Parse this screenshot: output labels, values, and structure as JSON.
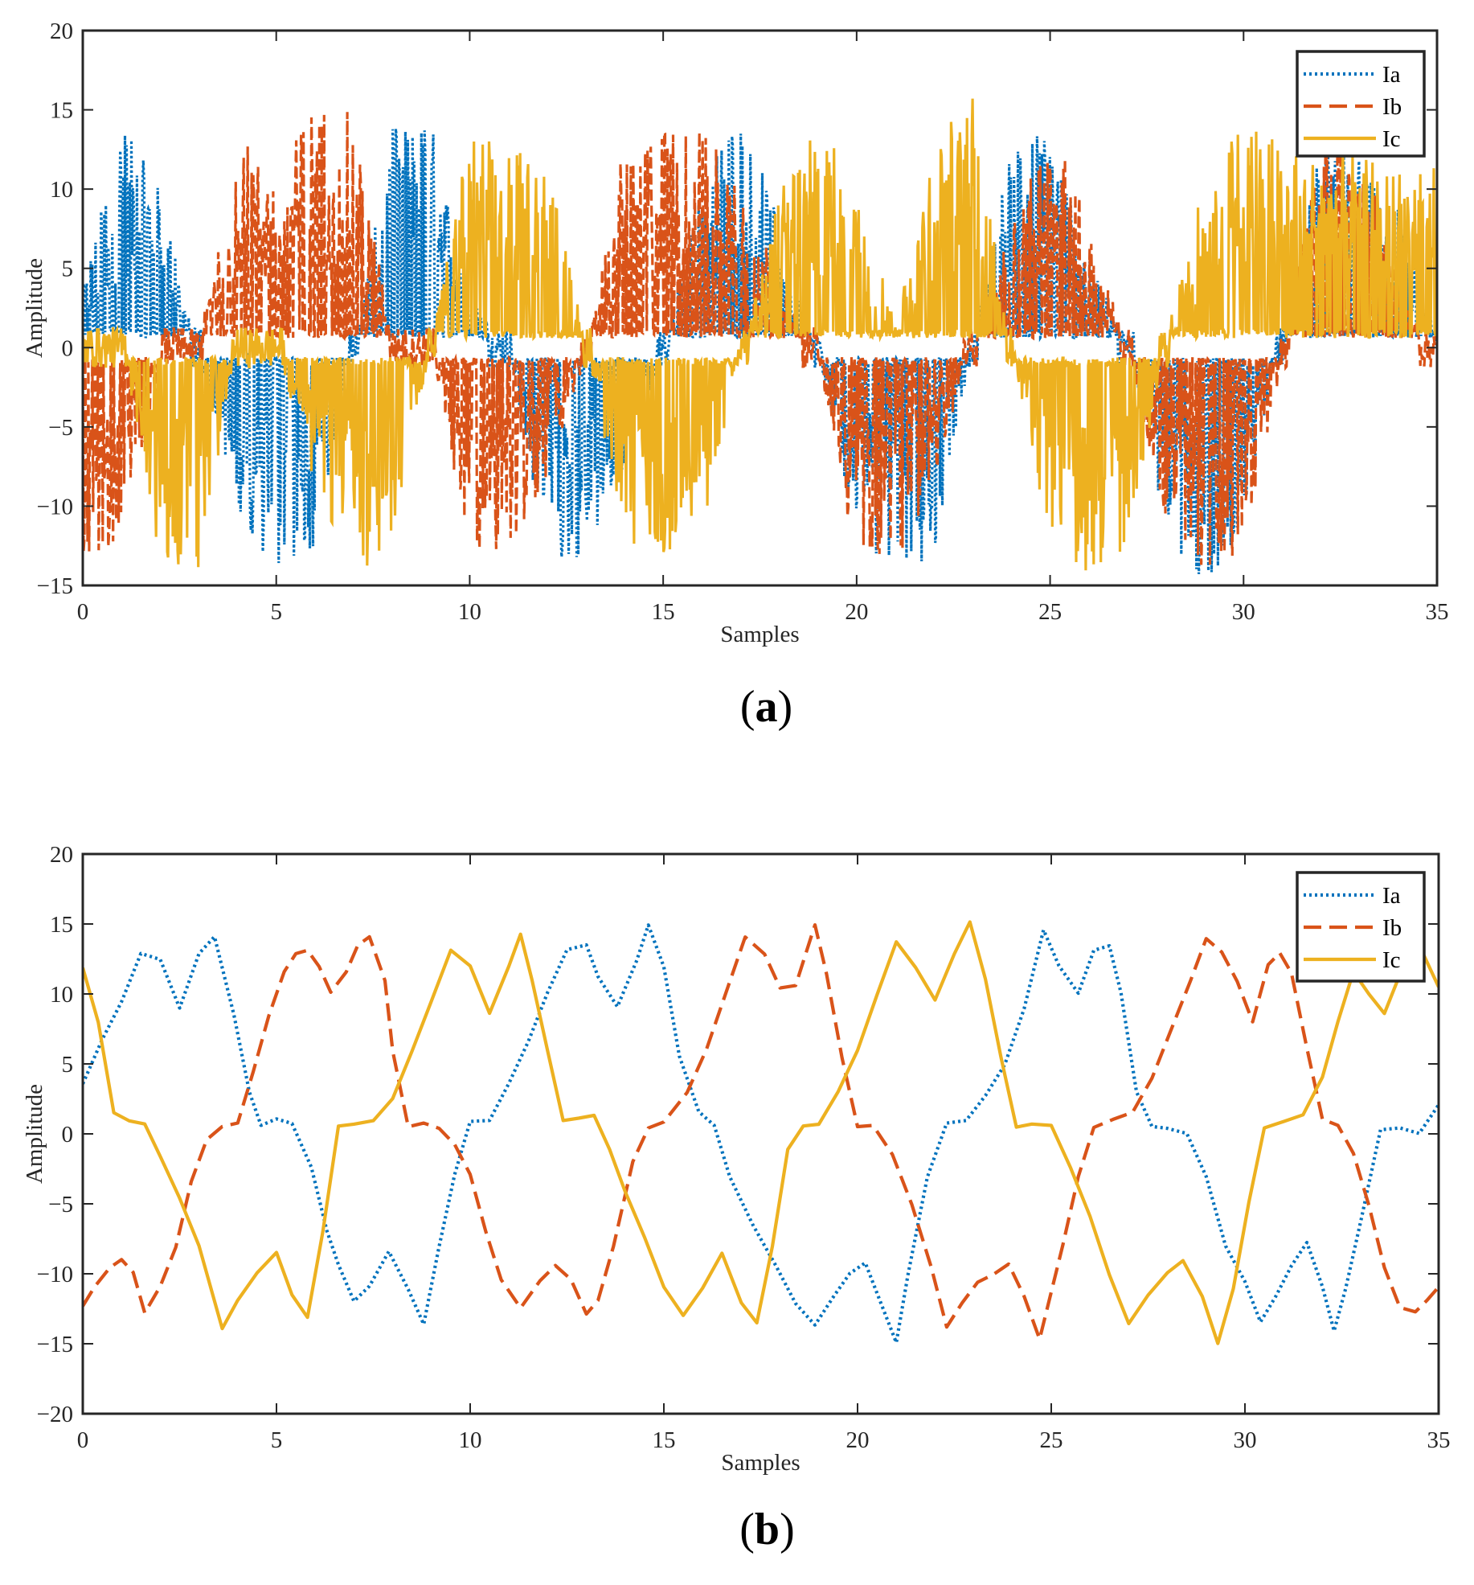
{
  "colors": {
    "Ia": "#0072BD",
    "Ib": "#D95319",
    "Ic": "#EDB120"
  },
  "chart_data": [
    {
      "type": "line",
      "caption_open": "(",
      "caption_letter": "a",
      "caption_close": ")",
      "xlabel": "Samples",
      "ylabel": "Amplitude",
      "xlim": [
        0,
        35
      ],
      "ylim": [
        -15,
        20
      ],
      "xticks": [
        0,
        5,
        10,
        15,
        20,
        25,
        30,
        35
      ],
      "yticks": [
        -15,
        -10,
        -5,
        0,
        5,
        10,
        15,
        20
      ],
      "xtick_labels": [
        "0",
        "5",
        "10",
        "15",
        "20",
        "25",
        "30",
        "35"
      ],
      "ytick_labels": [
        "−15",
        "−10",
        "−5",
        "0",
        "5",
        "10",
        "15",
        "20"
      ],
      "legend_position": "top-right",
      "style": "pwm-switched",
      "series": [
        {
          "name": "Ia",
          "values": [
            3.5,
            12.9,
            9.1,
            -0.8,
            -9.3,
            -13.2,
            -11.6,
            -0.1,
            12.6,
            13.1,
            3.0,
            -0.1,
            -12.3,
            -12.4,
            -7.1,
            -0.2,
            9.5,
            13.9,
            7.2,
            -0.3,
            -10.8,
            -13.5,
            -11.8,
            0.0,
            12.1,
            12.4,
            5.1,
            0.2,
            -10.5,
            -14.0,
            -10.0,
            0.4,
            11.6,
            11.1,
            8.2,
            0.8
          ]
        },
        {
          "name": "Ib",
          "values": [
            -12.1,
            -11.7,
            -1.6,
            0.3,
            12.4,
            9.8,
            14.3,
            13.4,
            0.6,
            -0.0,
            -11.8,
            -11.9,
            -7.3,
            -0.7,
            11.9,
            12.6,
            12.8,
            10.6,
            4.0,
            -0.5,
            -12.9,
            -12.3,
            -7.9,
            0.5,
            7.4,
            14.0,
            7.3,
            -0.2,
            -10.2,
            -13.3,
            -11.4,
            -1.0,
            12.6,
            12.5,
            3.8,
            -0.5
          ]
        },
        {
          "name": "Ic",
          "values": [
            -0.2,
            0.3,
            -12.5,
            -12.7,
            0.2,
            0.0,
            -7.9,
            -13.3,
            -11.4,
            0.2,
            12.4,
            11.5,
            10.6,
            0.5,
            -11.5,
            -12.3,
            -10.8,
            -0.7,
            9.5,
            12.6,
            10.1,
            1.4,
            12.5,
            14.4,
            -0.3,
            -11.4,
            -13.2,
            -11.5,
            0.6,
            9.7,
            13.4,
            11.8,
            11.1,
            11.4,
            10.0,
            10.4
          ]
        }
      ]
    },
    {
      "type": "line",
      "caption_open": "(",
      "caption_letter": "b",
      "caption_close": ")",
      "xlabel": "Samples",
      "ylabel": "Amplitude",
      "xlim": [
        0,
        35
      ],
      "ylim": [
        -20,
        20
      ],
      "xticks": [
        0,
        5,
        10,
        15,
        20,
        25,
        30,
        35
      ],
      "yticks": [
        -20,
        -15,
        -10,
        -5,
        0,
        5,
        10,
        15,
        20
      ],
      "xtick_labels": [
        "0",
        "5",
        "10",
        "15",
        "20",
        "25",
        "30",
        "35"
      ],
      "ytick_labels": [
        "−20",
        "−15",
        "−10",
        "−5",
        "0",
        "5",
        "10",
        "15",
        "20"
      ],
      "legend_position": "top-right",
      "style": "smooth",
      "series": [
        {
          "name": "Ia",
          "x": [
            0,
            0.5,
            1.0,
            1.5,
            2.0,
            2.5,
            3.0,
            3.4,
            3.9,
            4.3,
            4.6,
            5.0,
            5.4,
            5.9,
            6.3,
            6.6,
            7.0,
            7.4,
            7.9,
            8.4,
            8.8,
            9.2,
            9.6,
            10.0,
            10.5,
            11.0,
            11.5,
            12.0,
            12.5,
            13.0,
            13.3,
            13.8,
            14.3,
            14.6,
            15.0,
            15.4,
            15.9,
            16.3,
            16.7,
            17.3,
            17.9,
            18.4,
            18.9,
            19.4,
            19.8,
            20.2,
            20.6,
            21.0,
            21.3,
            21.8,
            22.3,
            22.8,
            23.3,
            23.8,
            24.3,
            24.8,
            25.2,
            25.7,
            26.1,
            26.5,
            26.8,
            27.2,
            27.6,
            28.0,
            28.5,
            29.0,
            29.5,
            30.0,
            30.4,
            30.8,
            31.2,
            31.6,
            32.0,
            32.3,
            32.6,
            33.0,
            33.5,
            34.0,
            34.5,
            35.0
          ],
          "values": [
            3.5,
            6.8,
            9.5,
            13.0,
            12.5,
            9.0,
            13.0,
            14.2,
            8.5,
            3.0,
            0.5,
            1.0,
            0.8,
            -2.5,
            -6.8,
            -9.3,
            -12.0,
            -11.0,
            -8.4,
            -11.2,
            -13.5,
            -8.0,
            -3.0,
            0.8,
            1.0,
            3.5,
            6.5,
            10.0,
            13.2,
            13.5,
            11.2,
            9.0,
            12.4,
            15.0,
            12.0,
            5.5,
            1.5,
            0.5,
            -3.0,
            -6.5,
            -9.5,
            -12.0,
            -13.7,
            -11.5,
            -10.0,
            -9.3,
            -12.0,
            -15.0,
            -10.0,
            -3.0,
            0.8,
            1.0,
            2.8,
            5.0,
            9.0,
            14.5,
            12.0,
            10.0,
            13.0,
            13.5,
            10.0,
            3.0,
            0.5,
            0.5,
            0.0,
            -3.0,
            -8.0,
            -10.5,
            -13.5,
            -11.5,
            -9.5,
            -7.8,
            -11.0,
            -14.2,
            -11.0,
            -6.0,
            0.2,
            0.3,
            0.0,
            2.0
          ]
        },
        {
          "name": "Ib",
          "x": [
            0,
            0.3,
            0.7,
            1.0,
            1.3,
            1.6,
            2.0,
            2.4,
            2.8,
            3.2,
            3.6,
            4.0,
            4.4,
            4.8,
            5.2,
            5.5,
            5.8,
            6.1,
            6.4,
            6.8,
            7.1,
            7.4,
            7.8,
            8.0,
            8.4,
            8.8,
            9.2,
            9.6,
            10.0,
            10.4,
            10.8,
            11.3,
            11.8,
            12.2,
            12.6,
            13.0,
            13.3,
            13.7,
            14.2,
            14.6,
            15.0,
            15.6,
            16.1,
            16.6,
            17.1,
            17.6,
            18.0,
            18.4,
            18.9,
            19.2,
            19.6,
            20.0,
            20.4,
            20.9,
            21.4,
            21.9,
            22.3,
            22.7,
            23.1,
            23.5,
            23.9,
            24.3,
            24.7,
            24.9,
            25.3,
            25.7,
            26.1,
            26.6,
            27.1,
            27.6,
            28.1,
            28.6,
            29.0,
            29.4,
            29.8,
            30.2,
            30.6,
            30.9,
            31.2,
            31.6,
            32.0,
            32.4,
            32.8,
            33.2,
            33.6,
            34.0,
            34.4,
            34.7,
            35.0
          ],
          "values": [
            -12.3,
            -11.0,
            -9.5,
            -9.0,
            -10.0,
            -12.8,
            -11.0,
            -8.0,
            -3.5,
            -0.5,
            0.5,
            0.8,
            4.5,
            8.5,
            11.5,
            12.8,
            13.0,
            12.0,
            10.0,
            11.5,
            13.5,
            14.2,
            11.0,
            6.0,
            0.5,
            0.8,
            0.5,
            -0.8,
            -3.0,
            -7.0,
            -10.5,
            -12.5,
            -10.5,
            -9.5,
            -10.5,
            -12.8,
            -12.0,
            -8.0,
            -2.0,
            0.5,
            0.8,
            3.0,
            6.0,
            10.0,
            14.0,
            12.8,
            10.5,
            10.5,
            15.0,
            11.5,
            5.5,
            0.5,
            0.5,
            -1.5,
            -5.0,
            -9.5,
            -13.8,
            -12.0,
            -10.5,
            -10.0,
            -9.2,
            -11.5,
            -14.8,
            -12.5,
            -8.0,
            -3.0,
            0.5,
            1.0,
            1.5,
            4.0,
            7.5,
            11.0,
            14.0,
            13.0,
            11.0,
            8.0,
            12.0,
            13.0,
            11.5,
            6.0,
            1.0,
            0.5,
            -1.5,
            -5.0,
            -9.5,
            -12.5,
            -12.8,
            -12.0,
            -11.0
          ]
        },
        {
          "name": "Ic",
          "x": [
            0,
            0.4,
            0.8,
            1.2,
            1.6,
            2.0,
            2.5,
            3.0,
            3.6,
            4.0,
            4.5,
            5.0,
            5.4,
            5.8,
            6.2,
            6.6,
            7.0,
            7.5,
            8.0,
            8.5,
            9.0,
            9.5,
            10.0,
            10.5,
            11.0,
            11.3,
            11.6,
            12.0,
            12.4,
            12.8,
            13.2,
            13.6,
            14.0,
            14.5,
            15.0,
            15.5,
            16.0,
            16.5,
            17.0,
            17.4,
            17.8,
            18.2,
            18.6,
            19.0,
            19.5,
            20.0,
            20.5,
            21.0,
            21.5,
            22.0,
            22.5,
            22.9,
            23.3,
            23.7,
            24.1,
            24.5,
            25.0,
            25.5,
            26.0,
            26.5,
            27.0,
            27.5,
            28.0,
            28.4,
            28.9,
            29.3,
            29.7,
            30.1,
            30.5,
            31.0,
            31.5,
            32.0,
            32.4,
            32.8,
            33.2,
            33.6,
            34.0,
            34.5,
            35.0
          ],
          "values": [
            12.0,
            8.0,
            1.5,
            1.0,
            0.8,
            -1.5,
            -4.5,
            -8.0,
            -13.8,
            -12.0,
            -10.0,
            -8.5,
            -11.5,
            -13.0,
            -7.0,
            0.5,
            0.8,
            1.0,
            2.5,
            6.0,
            9.5,
            13.2,
            12.0,
            8.5,
            12.0,
            14.3,
            11.0,
            6.0,
            1.0,
            1.0,
            1.3,
            -1.0,
            -4.0,
            -7.5,
            -11.0,
            -13.0,
            -11.0,
            -8.5,
            -12.0,
            -13.5,
            -8.0,
            -1.0,
            0.5,
            0.8,
            3.0,
            6.0,
            10.0,
            13.8,
            12.0,
            9.5,
            13.0,
            15.2,
            11.0,
            5.5,
            0.5,
            0.8,
            0.5,
            -2.5,
            -6.0,
            -10.0,
            -13.5,
            -11.5,
            -10.0,
            -9.0,
            -11.5,
            -15.0,
            -11.0,
            -5.0,
            0.5,
            1.0,
            1.3,
            4.0,
            8.0,
            11.5,
            10.0,
            8.5,
            11.5,
            13.5,
            10.5
          ]
        }
      ]
    }
  ]
}
